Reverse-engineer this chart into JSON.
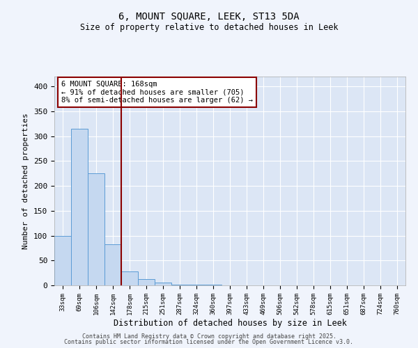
{
  "title1": "6, MOUNT SQUARE, LEEK, ST13 5DA",
  "title2": "Size of property relative to detached houses in Leek",
  "xlabel": "Distribution of detached houses by size in Leek",
  "ylabel": "Number of detached properties",
  "categories": [
    "33sqm",
    "69sqm",
    "106sqm",
    "142sqm",
    "178sqm",
    "215sqm",
    "251sqm",
    "287sqm",
    "324sqm",
    "360sqm",
    "397sqm",
    "433sqm",
    "469sqm",
    "506sqm",
    "542sqm",
    "578sqm",
    "615sqm",
    "651sqm",
    "687sqm",
    "724sqm",
    "760sqm"
  ],
  "values": [
    100,
    315,
    225,
    82,
    28,
    12,
    5,
    2,
    2,
    2,
    0,
    0,
    0,
    0,
    0,
    0,
    0,
    0,
    0,
    0,
    0
  ],
  "bar_color": "#c5d8f0",
  "bar_edge_color": "#5b9bd5",
  "background_color": "#dce6f5",
  "grid_color": "#ffffff",
  "vline_color": "#8b0000",
  "annotation_text": "6 MOUNT SQUARE: 168sqm\n← 91% of detached houses are smaller (705)\n8% of semi-detached houses are larger (62) →",
  "annotation_box_color": "#8b0000",
  "ylim": [
    0,
    420
  ],
  "yticks": [
    0,
    50,
    100,
    150,
    200,
    250,
    300,
    350,
    400
  ],
  "fig_bg": "#f0f4fc",
  "footer1": "Contains HM Land Registry data © Crown copyright and database right 2025.",
  "footer2": "Contains public sector information licensed under the Open Government Licence v3.0."
}
